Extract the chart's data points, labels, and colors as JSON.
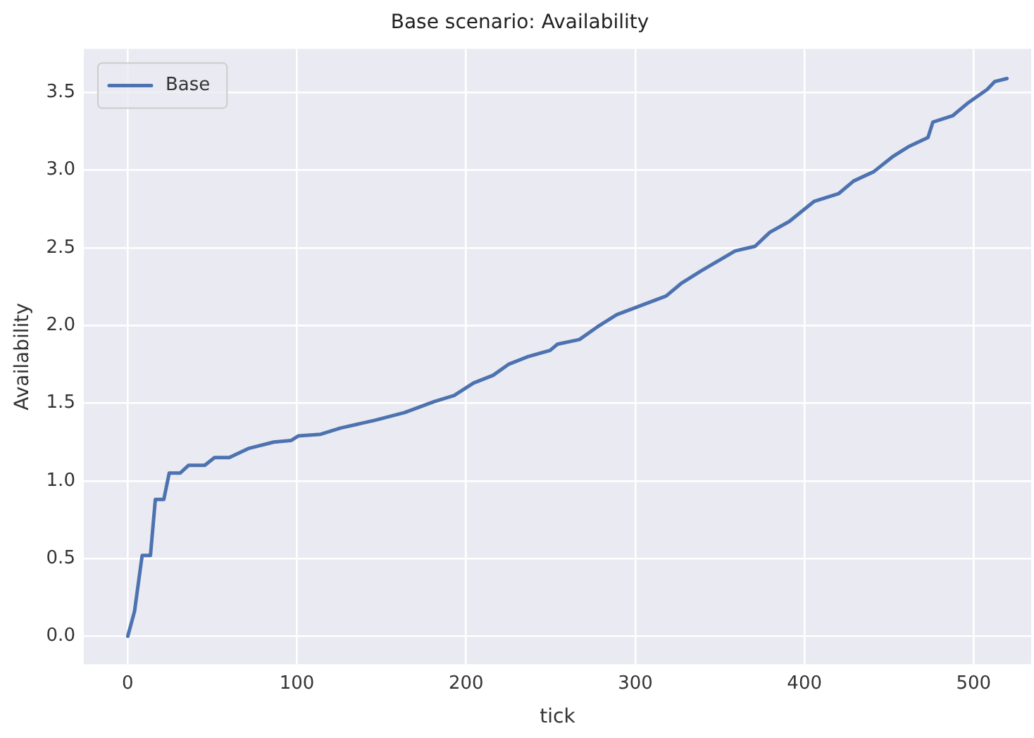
{
  "chart_data": {
    "type": "line",
    "title": "Base scenario: Availability",
    "xlabel": "tick",
    "ylabel": "Availability",
    "series": [
      {
        "name": "Base",
        "color": "#4c72b0",
        "x": [
          0,
          4,
          8.5,
          13.4,
          16.3,
          21.3,
          24.5,
          30.9,
          35.9,
          45.5,
          51.3,
          60,
          71.7,
          86.3,
          96.5,
          100.9,
          114,
          125.7,
          146,
          163.6,
          181,
          192.9,
          204.4,
          216,
          225,
          236.6,
          249.6,
          254,
          267,
          277.4,
          289,
          303.6,
          318.2,
          327,
          338.6,
          359,
          370.8,
          379.5,
          391,
          405.8,
          420.3,
          429,
          440.9,
          452.5,
          461.3,
          473,
          475.9,
          487.5,
          496.3,
          508,
          512.4,
          519.7
        ],
        "values": [
          0,
          0.16,
          0.52,
          0.52,
          0.88,
          0.88,
          1.05,
          1.05,
          1.1,
          1.1,
          1.15,
          1.15,
          1.21,
          1.25,
          1.26,
          1.29,
          1.3,
          1.34,
          1.39,
          1.44,
          1.51,
          1.55,
          1.63,
          1.68,
          1.75,
          1.8,
          1.84,
          1.88,
          1.91,
          1.99,
          2.07,
          2.13,
          2.19,
          2.27,
          2.35,
          2.48,
          2.51,
          2.6,
          2.67,
          2.8,
          2.85,
          2.93,
          2.99,
          3.09,
          3.15,
          3.21,
          3.31,
          3.35,
          3.43,
          3.52,
          3.57,
          3.59
        ]
      }
    ],
    "xlim": [
      -26,
      534
    ],
    "xticks": [
      0,
      100,
      200,
      300,
      400,
      500
    ],
    "ylim": [
      -0.18,
      3.78
    ],
    "yticks": [
      {
        "value": 0,
        "label": "0.0"
      },
      0.5,
      {
        "value": 1,
        "label": "1.0"
      },
      1.5,
      {
        "value": 2,
        "label": "2.0"
      },
      2.5,
      {
        "value": 3,
        "label": "3.0"
      },
      3.5
    ],
    "grid": true,
    "legend": "top left",
    "marker": "none",
    "line_style": "solid"
  }
}
